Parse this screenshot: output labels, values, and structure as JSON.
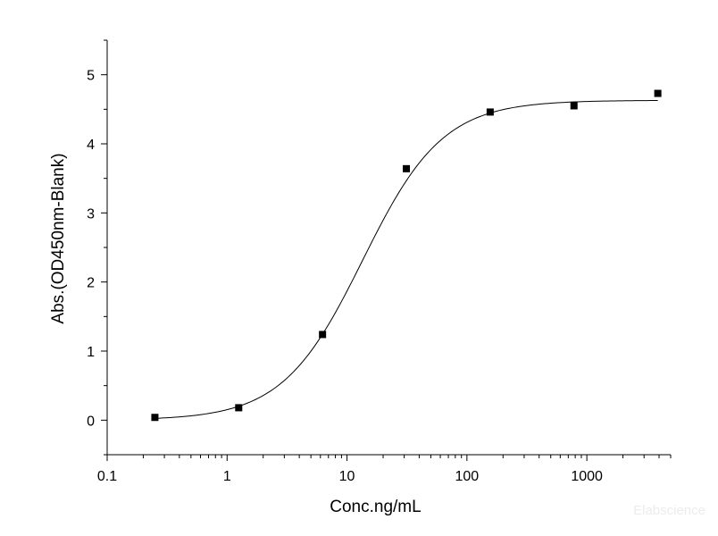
{
  "chart_data": {
    "type": "scatter",
    "xlabel": "Conc.ng/mL",
    "ylabel": "Abs.(OD450nm-Blank)",
    "x_scale": "log",
    "xlim": [
      0.1,
      5000
    ],
    "ylim": [
      -0.5,
      5.5
    ],
    "x_ticks": [
      {
        "value": 0.1,
        "label": "0.1"
      },
      {
        "value": 1,
        "label": "1"
      },
      {
        "value": 10,
        "label": "10"
      },
      {
        "value": 100,
        "label": "100"
      },
      {
        "value": 1000,
        "label": "1000"
      }
    ],
    "y_ticks": [
      {
        "value": 0,
        "label": "0"
      },
      {
        "value": 1,
        "label": "1"
      },
      {
        "value": 2,
        "label": "2"
      },
      {
        "value": 3,
        "label": "3"
      },
      {
        "value": 4,
        "label": "4"
      },
      {
        "value": 5,
        "label": "5"
      }
    ],
    "grid": false,
    "points": {
      "x": [
        0.25,
        1.25,
        6.25,
        31.25,
        156.25,
        781.25,
        3906.25
      ],
      "y": [
        0.04,
        0.18,
        1.24,
        3.64,
        4.46,
        4.55,
        4.73
      ],
      "marker": "square",
      "color": "#000000"
    },
    "fit_curve": {
      "type": "four-parameter-logistic",
      "bottom": 0.0,
      "top": 4.63,
      "ec50": 13.5,
      "hill": 1.3,
      "color": "#000000"
    }
  },
  "watermark": "Elabscience"
}
